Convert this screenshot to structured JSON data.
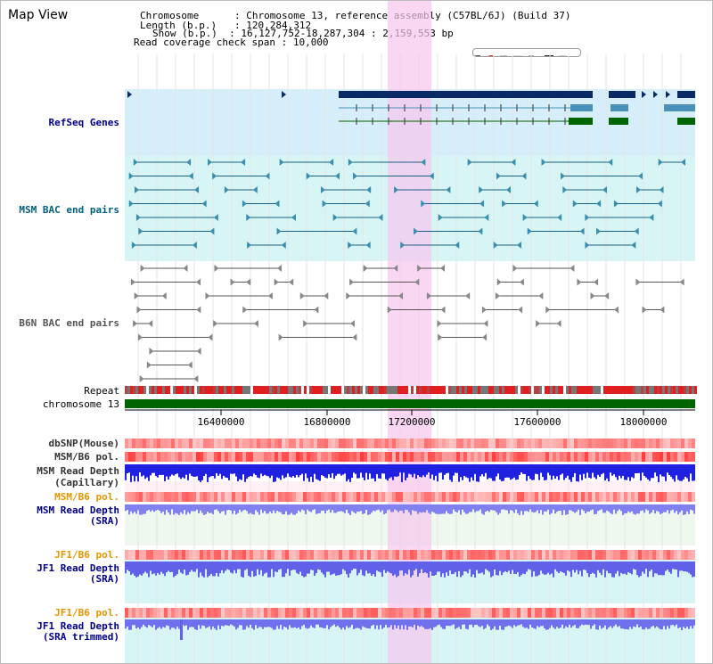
{
  "title": "Map View",
  "info": {
    "chromosome_key": "Chromosome",
    "chromosome_val": ": Chromosome 13, reference assembly (C57BL/6J) (Build 37)",
    "length_key": "Length (b.p.)",
    "length_val": ": 120,284,312",
    "show_key": "Show (b.p.)",
    "show_val": ": 16,127,752-18,287,304 : 2,159,553 bp",
    "span_key": "Read coverage check span",
    "span_val": ": 10,000"
  },
  "tracks": {
    "refseq": "RefSeq Genes",
    "msm_bac": "MSM BAC end pairs",
    "b6n_bac": "B6N BAC end pairs",
    "repeat": "Repeat",
    "chromosome": "chromosome 13",
    "dbsnp": "dbSNP(Mouse)",
    "msm_b6_pol": "MSM/B6 pol.",
    "msm_depth_cap_1": "MSM Read Depth",
    "msm_depth_cap_2": "(Capillary)",
    "msm_b6_pol2": "MSM/B6 pol.",
    "msm_depth_sra_1": "MSM Read Depth",
    "msm_depth_sra_2": "(SRA)",
    "jf1_b6_pol": "JF1/B6 pol.",
    "jf1_depth_1": "JF1 Read Depth",
    "jf1_depth_2": "(SRA)",
    "jf1_b6_pol2": "JF1/B6 pol.",
    "jf1_trim_1": "JF1 Read Depth",
    "jf1_trim_2": "(SRA trimmed)"
  },
  "axis_ticks": [
    "16400000",
    "16800000",
    "17200000",
    "17600000",
    "18000000"
  ],
  "colors": {
    "refseq_bg": "#d6eef9",
    "msm_bg": "#d8f5f5",
    "highlight": "#f7c6ee",
    "gene_navy": "#0a2a66",
    "gene_steel": "#4a90b8",
    "gene_green": "#006400",
    "chromosome_bar": "#006400"
  }
}
